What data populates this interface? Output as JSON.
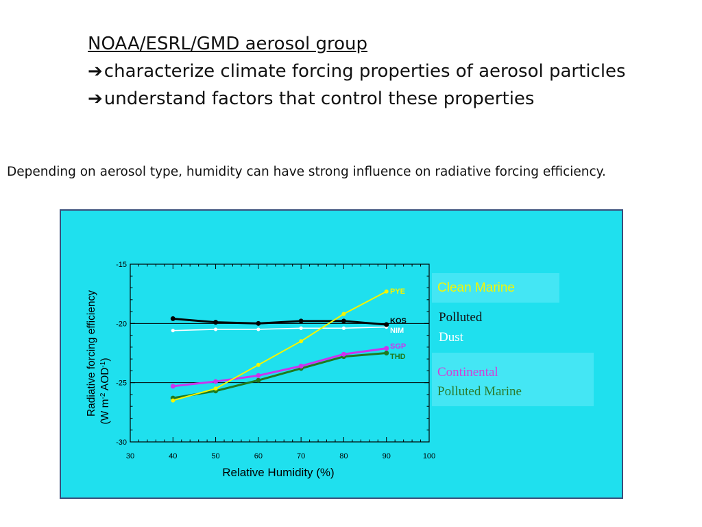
{
  "header": {
    "title": "NOAA/ESRL/GMD aerosol group",
    "arrow": "➔",
    "bullets": [
      "characterize climate forcing properties of aerosol particles",
      "understand factors that control these properties"
    ]
  },
  "subtitle": "Depending on aerosol type, humidity can have strong influence on radiative forcing efficiency.",
  "legend": {
    "clean_marine": "Clean Marine",
    "polluted": "Polluted",
    "dust": "Dust",
    "continental": "Continental",
    "polluted_marine": "Polluted Marine"
  },
  "colors": {
    "panel_bg": "#1fe0ee",
    "PYE": "#f4f400",
    "KOS": "#000000",
    "NIM": "#ffffff",
    "SGP": "#cc33ee",
    "THD": "#1f7a1f"
  },
  "chart_data": {
    "type": "line",
    "title": "",
    "xlabel": "Relative Humidity (%)",
    "ylabel_line1": "Radiative forcing efficiency",
    "ylabel_line2": "(W m-2 AOD-1)",
    "xlim": [
      30,
      100
    ],
    "ylim": [
      -30,
      -15
    ],
    "xticks": [
      30,
      40,
      50,
      60,
      70,
      80,
      90,
      100
    ],
    "yticks": [
      -15,
      -20,
      -25,
      -30
    ],
    "xtick_labels": [
      "30",
      "40",
      "50",
      "60",
      "70",
      "80",
      "90",
      "100"
    ],
    "ytick_labels": [
      "-15",
      "-20",
      "-25",
      "-30"
    ],
    "gridlines_y": [
      -20,
      -25
    ],
    "series": [
      {
        "name": "PYE",
        "x": [
          40,
          50,
          60,
          70,
          80,
          90
        ],
        "values": [
          -26.5,
          -25.5,
          -23.5,
          -21.5,
          -19.2,
          -17.3
        ]
      },
      {
        "name": "KOS",
        "x": [
          40,
          50,
          60,
          70,
          80,
          90
        ],
        "values": [
          -19.6,
          -19.9,
          -20.0,
          -19.8,
          -19.8,
          -20.1
        ]
      },
      {
        "name": "NIM",
        "x": [
          40,
          50,
          60,
          70,
          80,
          90
        ],
        "values": [
          -20.6,
          -20.5,
          -20.5,
          -20.4,
          -20.4,
          -20.3
        ]
      },
      {
        "name": "SGP",
        "x": [
          40,
          50,
          60,
          70,
          80,
          90
        ],
        "values": [
          -25.3,
          -24.9,
          -24.4,
          -23.6,
          -22.6,
          -22.1
        ]
      },
      {
        "name": "THD",
        "x": [
          40,
          50,
          60,
          70,
          80,
          90
        ],
        "values": [
          -26.3,
          -25.7,
          -24.8,
          -23.8,
          -22.8,
          -22.5
        ]
      }
    ]
  }
}
